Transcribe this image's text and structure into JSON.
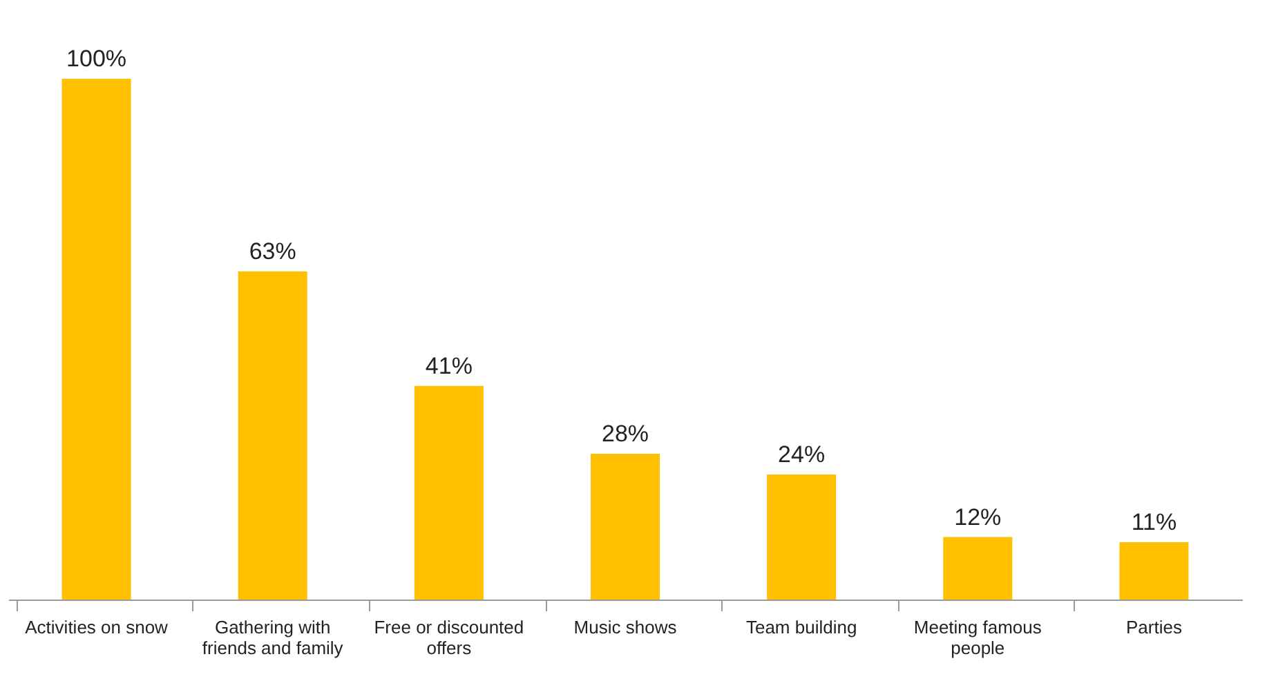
{
  "chart_data": {
    "type": "bar",
    "categories": [
      "Activities on snow",
      "Gathering with friends and family",
      "Free or discounted offers",
      "Music shows",
      "Team building",
      "Meeting famous people",
      "Parties"
    ],
    "values": [
      100,
      63,
      41,
      28,
      24,
      12,
      11
    ],
    "value_labels": [
      "100%",
      "63%",
      "41%",
      "28%",
      "24%",
      "12%",
      "11%"
    ],
    "color": "#ffc000",
    "grid": false
  }
}
